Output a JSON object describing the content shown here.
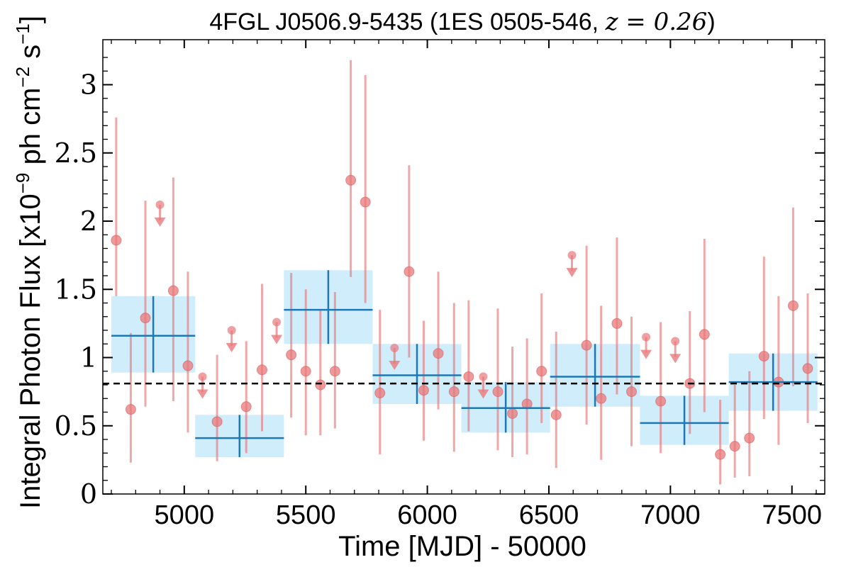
{
  "chart_data": {
    "type": "scatter",
    "title_main": "4FGL J0506.9-5435 (1ES 0505-546, ",
    "title_z": "z = 0.26",
    "title_end": ")",
    "xlabel": "Time [MJD] - 50000",
    "ylabel": "Integral Photon Flux [x10",
    "ylabel_exp": "−9",
    "ylabel_mid": " ph cm",
    "ylabel_exp2": "−2",
    "ylabel_mid2": " s",
    "ylabel_exp3": "−1",
    "ylabel_end": "]",
    "xlim": [
      4665,
      7635
    ],
    "ylim": [
      0,
      3.33
    ],
    "x_ticks": [
      5000,
      5500,
      6000,
      6500,
      7000,
      7500
    ],
    "x_tick_labels": [
      "5000",
      "5500",
      "6000",
      "6500",
      "7000",
      "7500"
    ],
    "y_ticks": [
      0,
      0.5,
      1,
      1.5,
      2,
      2.5,
      3
    ],
    "y_tick_labels": [
      "0",
      "0.5",
      "1",
      "1.5",
      "2",
      "2.5",
      "3"
    ],
    "mean_flux": 0.81,
    "colors": {
      "points": "#e8787a",
      "bins_fill": "#cfedfb",
      "bins_line": "#1f77b4",
      "mean_line": "#000000"
    },
    "points": [
      {
        "x": 4720,
        "y": 1.86,
        "lo": 1.45,
        "hi": 2.76
      },
      {
        "x": 4780,
        "y": 0.62,
        "lo": 0.23,
        "hi": 1.18
      },
      {
        "x": 4840,
        "y": 1.29,
        "lo": 0.64,
        "hi": 2.15
      },
      {
        "x": 4955,
        "y": 1.49,
        "lo": 0.68,
        "hi": 2.32
      },
      {
        "x": 5015,
        "y": 0.94,
        "lo": 0.45,
        "hi": 1.63
      },
      {
        "x": 5135,
        "y": 0.53,
        "lo": 0.24,
        "hi": 1.02
      },
      {
        "x": 5255,
        "y": 0.64,
        "lo": 0.3,
        "hi": 1.12
      },
      {
        "x": 5320,
        "y": 0.91,
        "lo": 0.46,
        "hi": 1.54
      },
      {
        "x": 5440,
        "y": 1.02,
        "lo": 0.56,
        "hi": 1.62
      },
      {
        "x": 5500,
        "y": 0.9,
        "lo": 0.43,
        "hi": 1.5
      },
      {
        "x": 5560,
        "y": 0.8,
        "lo": 0.43,
        "hi": 1.35
      },
      {
        "x": 5620,
        "y": 0.9,
        "lo": 0.48,
        "hi": 1.48
      },
      {
        "x": 5685,
        "y": 2.3,
        "lo": 1.59,
        "hi": 3.18
      },
      {
        "x": 5745,
        "y": 2.14,
        "lo": 1.4,
        "hi": 3.07
      },
      {
        "x": 5805,
        "y": 0.74,
        "lo": 0.29,
        "hi": 1.35
      },
      {
        "x": 5925,
        "y": 1.63,
        "lo": 1.0,
        "hi": 2.41
      },
      {
        "x": 5985,
        "y": 0.76,
        "lo": 0.39,
        "hi": 1.27
      },
      {
        "x": 6045,
        "y": 1.03,
        "lo": 0.62,
        "hi": 1.63
      },
      {
        "x": 6110,
        "y": 0.75,
        "lo": 0.31,
        "hi": 1.4
      },
      {
        "x": 6170,
        "y": 0.86,
        "lo": 0.46,
        "hi": 1.42
      },
      {
        "x": 6290,
        "y": 0.75,
        "lo": 0.32,
        "hi": 1.36
      },
      {
        "x": 6350,
        "y": 0.59,
        "lo": 0.27,
        "hi": 1.08
      },
      {
        "x": 6410,
        "y": 0.66,
        "lo": 0.29,
        "hi": 1.14
      },
      {
        "x": 6470,
        "y": 0.9,
        "lo": 0.52,
        "hi": 1.47
      },
      {
        "x": 6530,
        "y": 0.58,
        "lo": 0.19,
        "hi": 1.19
      },
      {
        "x": 6655,
        "y": 1.09,
        "lo": 0.51,
        "hi": 1.82
      },
      {
        "x": 6715,
        "y": 0.7,
        "lo": 0.25,
        "hi": 1.38
      },
      {
        "x": 6780,
        "y": 1.25,
        "lo": 0.73,
        "hi": 1.88
      },
      {
        "x": 6840,
        "y": 0.75,
        "lo": 0.35,
        "hi": 1.3
      },
      {
        "x": 6960,
        "y": 0.68,
        "lo": 0.3,
        "hi": 1.26
      },
      {
        "x": 7080,
        "y": 0.81,
        "lo": 0.44,
        "hi": 1.34
      },
      {
        "x": 7140,
        "y": 1.17,
        "lo": 0.6,
        "hi": 1.87
      },
      {
        "x": 7205,
        "y": 0.29,
        "lo": 0.07,
        "hi": 0.69
      },
      {
        "x": 7265,
        "y": 0.35,
        "lo": 0.12,
        "hi": 0.8
      },
      {
        "x": 7325,
        "y": 0.41,
        "lo": 0.13,
        "hi": 0.9
      },
      {
        "x": 7385,
        "y": 1.01,
        "lo": 0.55,
        "hi": 1.74
      },
      {
        "x": 7445,
        "y": 0.82,
        "lo": 0.36,
        "hi": 1.45
      },
      {
        "x": 7505,
        "y": 1.38,
        "lo": 0.79,
        "hi": 2.1
      },
      {
        "x": 7565,
        "y": 0.92,
        "lo": 0.52,
        "hi": 1.47
      }
    ],
    "upper_limits": [
      {
        "x": 4900,
        "y": 2.12
      },
      {
        "x": 5075,
        "y": 0.86
      },
      {
        "x": 5195,
        "y": 1.2
      },
      {
        "x": 5380,
        "y": 1.26
      },
      {
        "x": 5865,
        "y": 1.07
      },
      {
        "x": 6230,
        "y": 0.86
      },
      {
        "x": 6595,
        "y": 1.75
      },
      {
        "x": 6900,
        "y": 1.15
      },
      {
        "x": 7020,
        "y": 1.12
      }
    ],
    "bins": [
      {
        "x0": 4700,
        "x1": 5045,
        "y": 1.16,
        "lo": 0.89,
        "hi": 1.45
      },
      {
        "x0": 5045,
        "x1": 5410,
        "y": 0.41,
        "lo": 0.27,
        "hi": 0.58
      },
      {
        "x0": 5410,
        "x1": 5775,
        "y": 1.35,
        "lo": 1.1,
        "hi": 1.64
      },
      {
        "x0": 5775,
        "x1": 6140,
        "y": 0.87,
        "lo": 0.66,
        "hi": 1.1
      },
      {
        "x0": 6140,
        "x1": 6505,
        "y": 0.63,
        "lo": 0.45,
        "hi": 0.82
      },
      {
        "x0": 6505,
        "x1": 6875,
        "y": 0.86,
        "lo": 0.64,
        "hi": 1.1
      },
      {
        "x0": 6875,
        "x1": 7240,
        "y": 0.52,
        "lo": 0.36,
        "hi": 0.72
      },
      {
        "x0": 7240,
        "x1": 7605,
        "y": 0.82,
        "lo": 0.61,
        "hi": 1.03
      }
    ]
  }
}
